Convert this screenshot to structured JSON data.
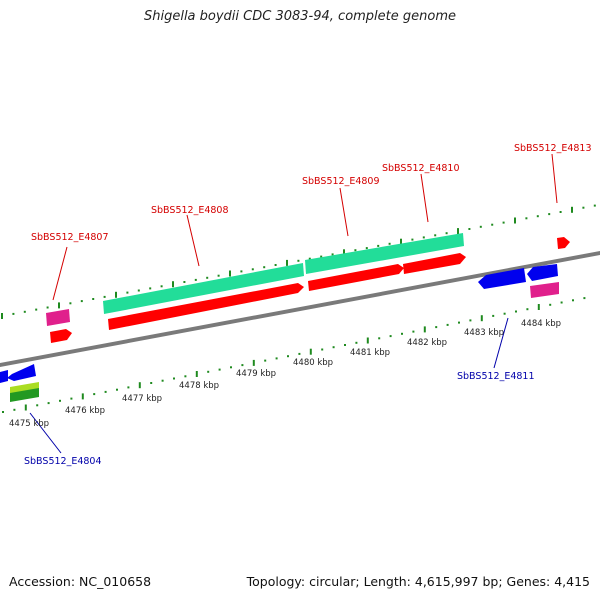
{
  "title": "Shigella boydii CDC 3083-94, complete genome",
  "footer": {
    "accession": "Accession: NC_010658",
    "topology": "Topology: circular; Length: 4,615,997 bp; Genes: 4,415"
  },
  "colors": {
    "top_label": "#d40000",
    "bottom_label": "#0000aa",
    "backbone": "#7a7a7a",
    "tick": "#1f8a1f"
  },
  "ruler_labels": [
    "4475 kbp",
    "4476 kbp",
    "4477 kbp",
    "4478 kbp",
    "4479 kbp",
    "4480 kbp",
    "4481 kbp",
    "4482 kbp",
    "4483 kbp",
    "4484 kbp"
  ],
  "gene_labels_top": [
    "SbBS512_E4807",
    "SbBS512_E4808",
    "SbBS512_E4809",
    "SbBS512_E4810",
    "SbBS512_E4813"
  ],
  "gene_labels_bottom": [
    "SbBS512_E4804",
    "SbBS512_E4811"
  ]
}
